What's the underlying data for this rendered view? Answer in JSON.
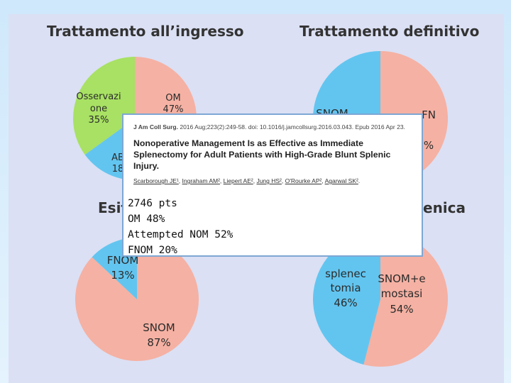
{
  "slide": {
    "title_ingresso": "Trattamento all’ingresso",
    "title_definitivo": "Trattamento definitivo",
    "title_esito_left": "Esit",
    "title_esito_right": "enica"
  },
  "colors": {
    "salmon": "#f5b1a3",
    "green": "#a8e163",
    "blue": "#62c5f0"
  },
  "chart_data": [
    {
      "type": "pie",
      "title": "Trattamento all’ingresso",
      "slices": [
        {
          "label": "OM",
          "value": 47,
          "display": "47%",
          "color": "#f5b1a3"
        },
        {
          "label": "AB",
          "value": 18,
          "display": "18",
          "color": "#62c5f0"
        },
        {
          "label": "Osservazi one",
          "value": 35,
          "display": "35%",
          "color": "#a8e163"
        }
      ]
    },
    {
      "type": "pie",
      "title": "Trattamento definitivo",
      "slices": [
        {
          "label": "FN",
          "value": 60,
          "display": "%",
          "color": "#f5b1a3"
        },
        {
          "label": "SNOM",
          "value": 40,
          "display": "",
          "color": "#62c5f0"
        }
      ]
    },
    {
      "type": "pie",
      "title": "",
      "slices": [
        {
          "label": "SNOM",
          "value": 87,
          "display": "87%",
          "color": "#f5b1a3"
        },
        {
          "label": "FNOM",
          "value": 13,
          "display": "13%",
          "color": "#62c5f0"
        }
      ]
    },
    {
      "type": "pie",
      "title": "",
      "slices": [
        {
          "label": "SNOM+e mostasi",
          "value": 54,
          "display": "54%",
          "color": "#f5b1a3"
        },
        {
          "label": "splenec tomia",
          "value": 46,
          "display": "46%",
          "color": "#62c5f0"
        }
      ]
    }
  ],
  "popup": {
    "journal": "J Am Coll Surg.",
    "citation": " 2016 Aug;223(2):249-58. doi: 10.1016/j.jamcollsurg.2016.03.043. Epub 2016 Apr 23.",
    "title": "Nonoperative Management Is as Effective as Immediate Splenectomy for Adult Patients with High-Grade Blunt Splenic Injury.",
    "authors": [
      "Scarborough JE¹",
      "Ingraham AM²",
      "Liepert AE²",
      "Jung HS²",
      "O'Rourke AP²",
      "Agarwal SK²"
    ],
    "notes": [
      "2746 pts",
      "OM 48%",
      "Attempted NOM 52%",
      "FNOM 20%"
    ]
  }
}
